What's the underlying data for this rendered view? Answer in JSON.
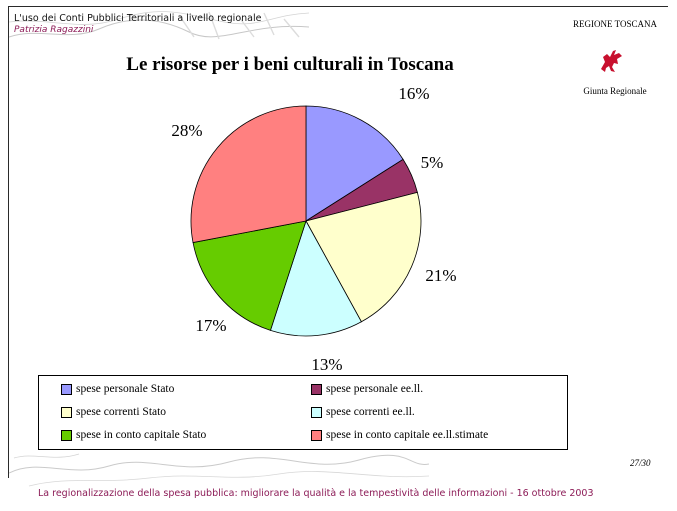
{
  "header": {
    "title": "L'uso dei Conti Pubblici Territoriali a livello regionale",
    "author": "Patrizia Ragazzini"
  },
  "organization": {
    "name": "REGIONE TOSCANA",
    "subtitle": "Giunta Regionale",
    "logo_icon": "pegasus-icon",
    "logo_color": "#c8102e"
  },
  "chart_data": {
    "type": "pie",
    "title": "Le risorse per i beni culturali in Toscana",
    "slices": [
      {
        "name": "spese personale Stato",
        "value": 16,
        "label": "16%",
        "color": "#9999ff"
      },
      {
        "name": "spese personale ee.ll.",
        "value": 5,
        "label": "5%",
        "color": "#993366"
      },
      {
        "name": "spese correnti Stato",
        "value": 21,
        "label": "21%",
        "color": "#ffffcc"
      },
      {
        "name": "spese correnti ee.ll.",
        "value": 13,
        "label": "13%",
        "color": "#ccffff"
      },
      {
        "name": "spese in conto capitale Stato",
        "value": 17,
        "label": "17%",
        "color": "#66cc00"
      },
      {
        "name": "spese in conto capitale ee.ll.stimate",
        "value": 28,
        "label": "28%",
        "color": "#ff8080"
      }
    ],
    "legend_position": "bottom"
  },
  "page_number": "27/30",
  "footer": "La regionalizzazione della spesa pubblica: migliorare la qualità e la tempestività delle informazioni - 16 ottobre 2003"
}
